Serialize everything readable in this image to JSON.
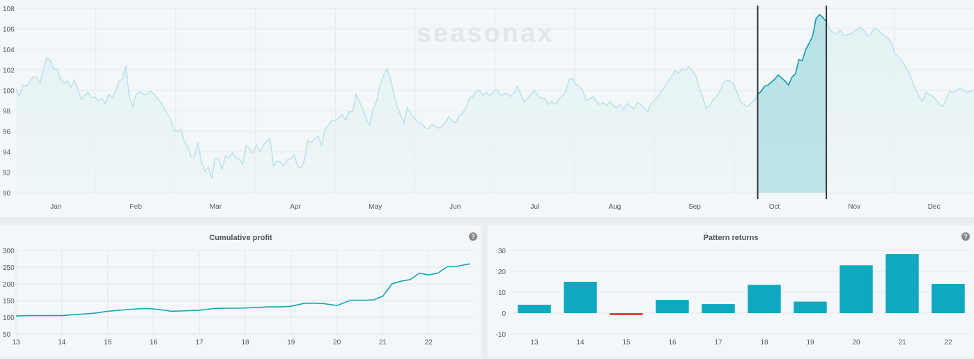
{
  "chart_data": [
    {
      "type": "line",
      "title": "",
      "watermark": "seasonax",
      "ylim": [
        90,
        108
      ],
      "y_ticks": [
        90,
        92,
        94,
        96,
        98,
        100,
        102,
        104,
        106,
        108
      ],
      "x_tick_labels": [
        "Jan",
        "Feb",
        "Mar",
        "Apr",
        "May",
        "Jun",
        "Jul",
        "Aug",
        "Sep",
        "Oct",
        "Nov",
        "Dec"
      ],
      "series": [
        {
          "values": [
            100.1,
            99.4,
            100.5,
            100.4,
            100.8,
            101.3,
            101.3,
            100.7,
            102.1,
            103.2,
            102.9,
            102.1,
            102.1,
            101.1,
            100.7,
            100.9,
            100.3,
            101.0,
            100.1,
            99.1,
            99.5,
            99.8,
            99.3,
            99.3,
            99.0,
            99.2,
            98.7,
            99.6,
            99.3,
            99.9,
            100.9,
            101.1,
            102.4,
            99.3,
            98.4,
            99.6,
            99.9,
            99.6,
            99.6,
            99.9,
            99.7,
            99.3,
            98.9,
            98.3,
            97.7,
            97.2,
            96.1,
            96.0,
            96.2,
            95.0,
            94.6,
            93.5,
            93.6,
            94.9,
            93.0,
            92.1,
            92.5,
            91.4,
            93.4,
            93.3,
            92.3,
            93.6,
            93.4,
            93.9,
            93.4,
            93.3,
            92.8,
            94.6,
            94.3,
            93.9,
            94.7,
            94.0,
            94.6,
            95.0,
            95.3,
            92.6,
            93.1,
            93.0,
            92.6,
            93.2,
            93.3,
            93.7,
            92.6,
            92.4,
            93.2,
            95.1,
            94.9,
            95.3,
            95.5,
            94.6,
            96.2,
            96.6,
            97.1,
            97.0,
            97.3,
            97.6,
            97.1,
            97.9,
            97.9,
            99.6,
            98.9,
            98.2,
            97.2,
            96.6,
            98.2,
            98.9,
            100.5,
            101.4,
            102.1,
            101.2,
            99.7,
            98.4,
            97.6,
            96.8,
            98.3,
            97.7,
            97.3,
            96.9,
            96.8,
            96.4,
            96.2,
            96.7,
            96.5,
            96.3,
            96.5,
            96.8,
            97.4,
            97.0,
            96.8,
            97.5,
            97.7,
            98.3,
            99.2,
            99.4,
            99.9,
            100.0,
            99.5,
            99.8,
            99.4,
            99.9,
            100.1,
            99.5,
            99.6,
            99.7,
            99.4,
            99.7,
            100.4,
            99.6,
            98.9,
            99.2,
            99.6,
            100.0,
            99.5,
            99.2,
            99.2,
            98.6,
            98.9,
            98.6,
            99.1,
            99.4,
            99.8,
            101.0,
            101.2,
            100.6,
            100.4,
            100.0,
            99.0,
            99.1,
            99.4,
            98.9,
            98.6,
            98.8,
            98.5,
            98.9,
            98.5,
            98.3,
            98.6,
            98.1,
            98.7,
            98.4,
            98.2,
            98.8,
            98.6,
            98.2,
            97.9,
            98.7,
            99.0,
            99.4,
            99.9,
            100.4,
            100.9,
            101.4,
            101.9,
            101.7,
            102.1,
            102.0,
            102.3,
            101.9,
            101.4,
            100.2,
            99.3,
            98.2,
            98.5,
            99.1,
            99.4,
            99.9,
            100.7,
            101.0,
            100.9,
            100.6,
            99.8,
            98.9,
            98.6,
            98.4,
            98.7,
            99.0,
            99.6,
            99.9,
            100.4,
            100.5,
            100.8,
            101.1,
            101.5,
            101.2,
            100.9,
            100.5,
            101.3,
            101.6,
            103.0,
            102.9,
            104.0,
            104.6,
            105.3,
            107.0,
            107.4,
            107.1,
            106.7,
            106.0,
            105.6,
            105.5,
            105.9,
            105.4,
            105.4,
            105.5,
            105.7,
            106.0,
            106.2,
            105.8,
            105.3,
            105.5,
            106.1,
            105.9,
            105.6,
            105.3,
            105.1,
            104.6,
            103.6,
            103.3,
            102.9,
            102.3,
            101.8,
            100.9,
            100.1,
            99.4,
            98.9,
            99.8,
            99.6,
            99.4,
            99.0,
            98.6,
            98.4,
            99.3,
            99.9,
            99.8,
            100.0,
            100.2,
            100.0,
            99.8,
            99.9,
            100.1
          ]
        }
      ],
      "highlight_range_index": [
        216,
        236
      ]
    },
    {
      "type": "line",
      "title": "Cumulative profit",
      "help_icon": "question-icon",
      "ylim": [
        50,
        300
      ],
      "y_ticks": [
        50,
        100,
        150,
        200,
        250,
        300
      ],
      "xlim": [
        13,
        23
      ],
      "x_ticks": [
        13,
        14,
        15,
        16,
        17,
        18,
        19,
        20,
        21,
        22
      ],
      "series": [
        {
          "x": [
            13,
            13.3,
            14,
            14.3,
            14.7,
            15,
            15.5,
            15.8,
            16,
            16.4,
            16.8,
            17,
            17.3,
            17.6,
            17.9,
            18.2,
            18.5,
            18.8,
            19,
            19.3,
            19.5,
            19.7,
            20,
            20.3,
            20.6,
            20.8,
            21,
            21.2,
            21.4,
            21.6,
            21.8,
            22,
            22.2,
            22.4,
            22.6,
            22.9
          ],
          "y": [
            104,
            105,
            105,
            108,
            112,
            118,
            124,
            126,
            125,
            118,
            120,
            121,
            126,
            127,
            127,
            129,
            131,
            131,
            133,
            142,
            142,
            141,
            135,
            151,
            151,
            152,
            163,
            200,
            208,
            213,
            232,
            227,
            232,
            251,
            252,
            260
          ]
        }
      ]
    },
    {
      "type": "bar",
      "title": "Pattern returns",
      "help_icon": "question-icon",
      "ylim": [
        -10,
        30
      ],
      "y_ticks": [
        -10,
        0,
        10,
        20,
        30
      ],
      "categories": [
        "13",
        "14",
        "15",
        "16",
        "17",
        "18",
        "19",
        "20",
        "21",
        "22"
      ],
      "values": [
        4.0,
        15.0,
        -1.0,
        6.3,
        4.3,
        13.5,
        5.5,
        22.9,
        28.3,
        14.0
      ],
      "positive_color": "#0fa8c0",
      "negative_color": "#e3453a"
    }
  ]
}
